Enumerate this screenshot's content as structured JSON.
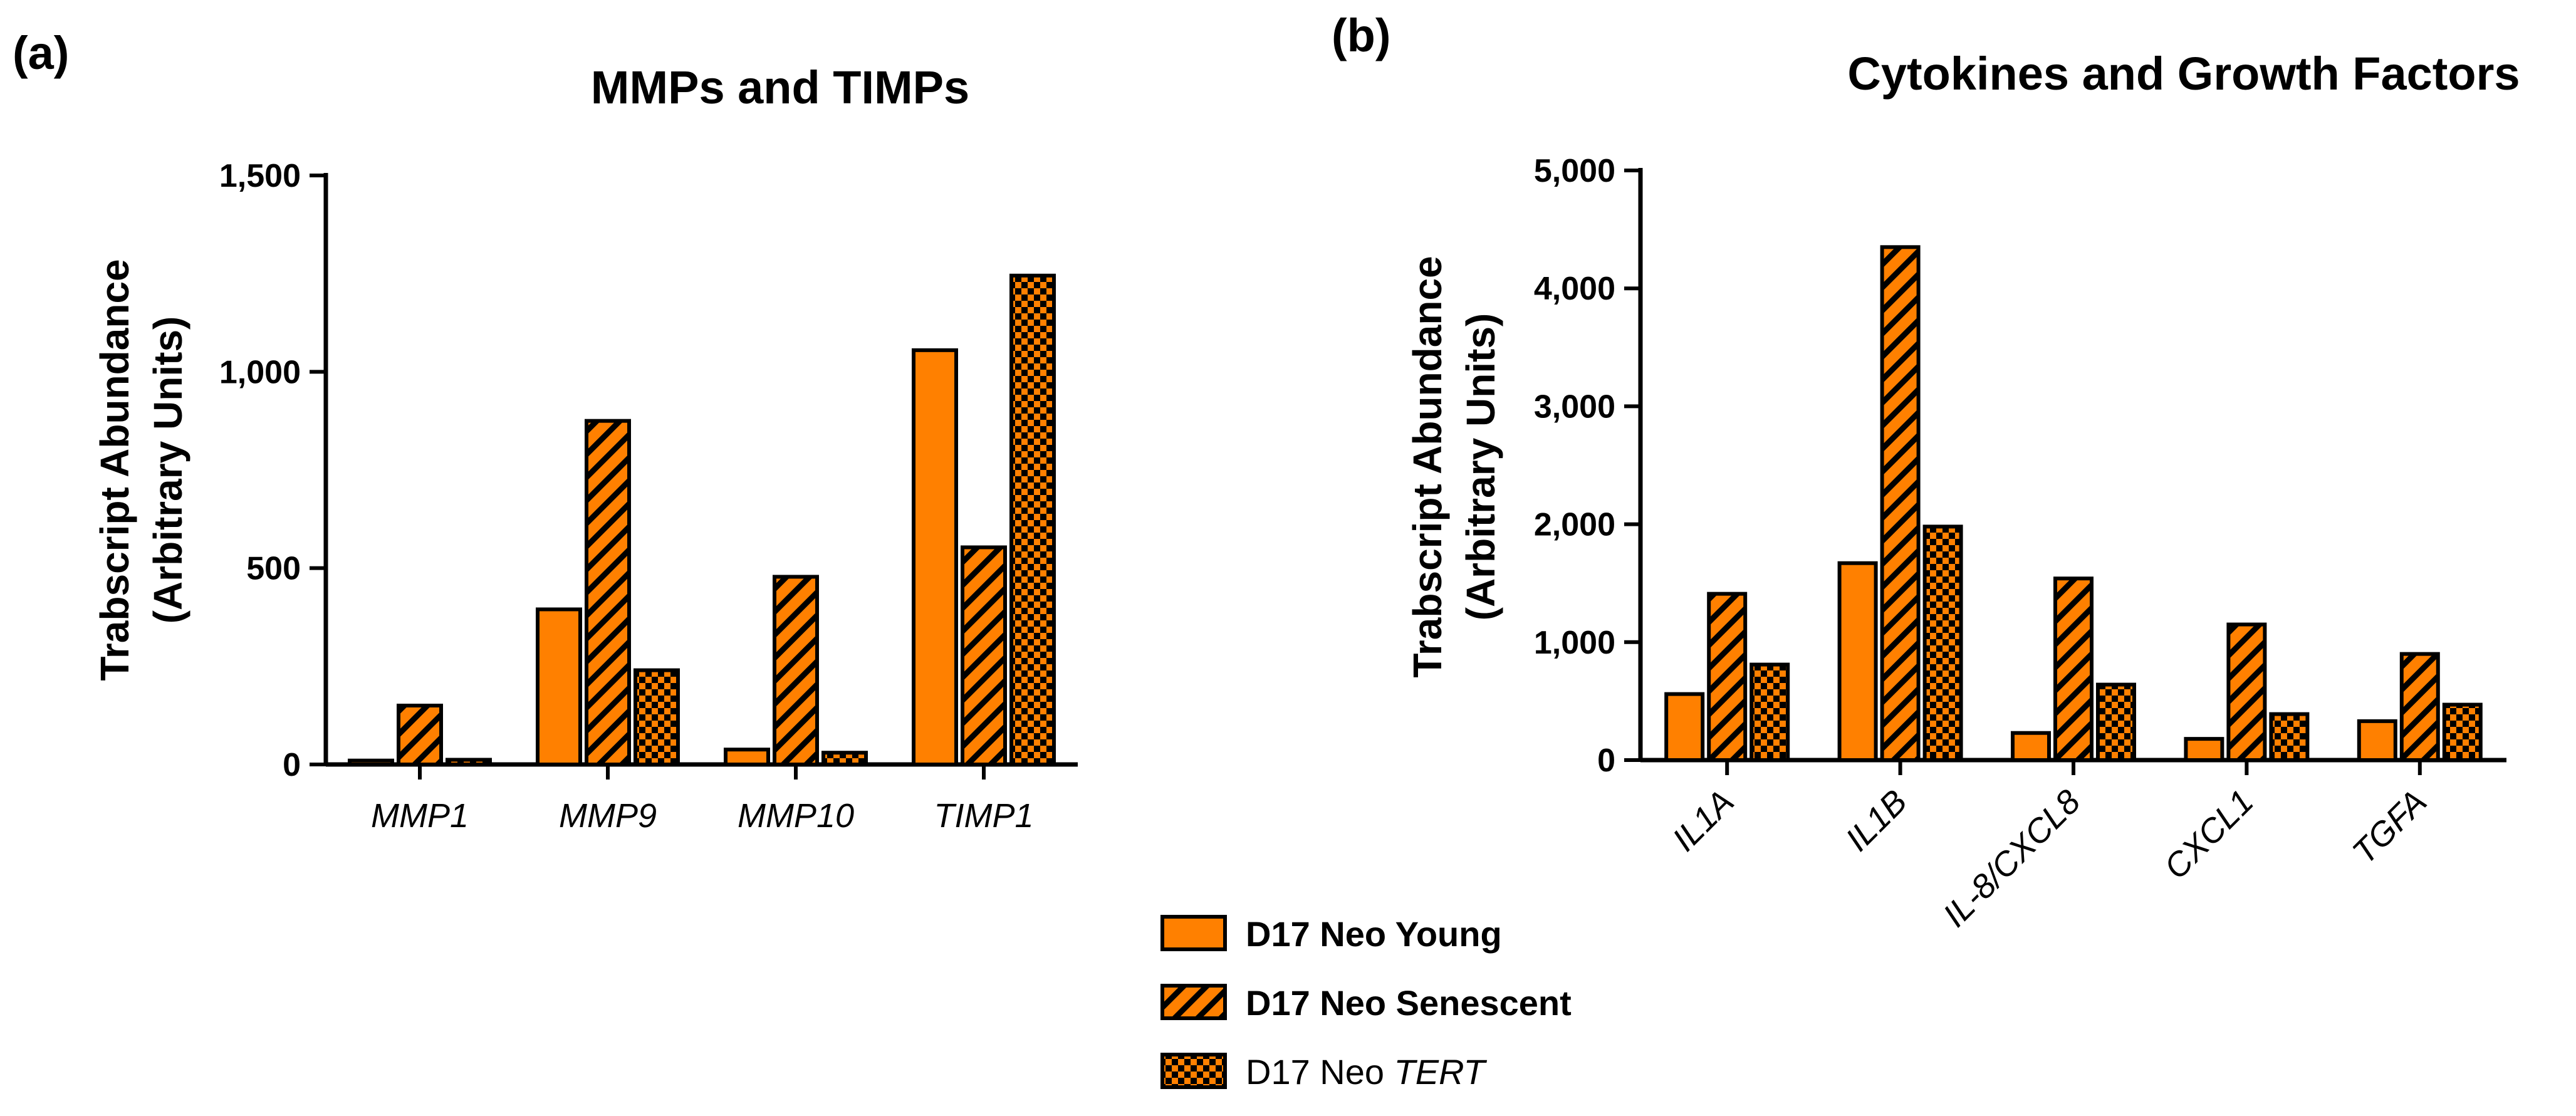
{
  "colors": {
    "bar_fill": "#FF8000",
    "stroke": "#000000",
    "background": "#FFFFFF"
  },
  "legend": {
    "entries": [
      {
        "pre": "D17 Neo Young",
        "italic": "",
        "bold": true,
        "pattern": "solid"
      },
      {
        "pre": "D17 Neo Senescent",
        "italic": "",
        "bold": true,
        "pattern": "hatch"
      },
      {
        "pre": "D17 Neo ",
        "italic": "TERT",
        "bold": false,
        "pattern": "checker"
      }
    ]
  },
  "chart_data": [
    {
      "panel": "(a)",
      "type": "bar",
      "title": "MMPs and TIMPs",
      "ylabel_lines": [
        "Trabscript Abundance",
        "(Arbitrary Units)"
      ],
      "xlabel": "",
      "ylim": [
        0,
        1500
      ],
      "yticks": [
        0,
        500,
        1000,
        1500
      ],
      "ytick_labels": [
        "0",
        "500",
        "1,000",
        "1,500"
      ],
      "categories": [
        "MMP1",
        "MMP9",
        "MMP10",
        "TIMP1"
      ],
      "series": [
        {
          "name": "D17 Neo Young",
          "pattern": "solid",
          "values": [
            10,
            395,
            38,
            1055
          ]
        },
        {
          "name": "D17 Neo Senescent",
          "pattern": "hatch",
          "values": [
            150,
            875,
            478,
            553
          ]
        },
        {
          "name": "D17 Neo TERT",
          "pattern": "checker",
          "values": [
            12,
            240,
            30,
            1245
          ]
        }
      ]
    },
    {
      "panel": "(b)",
      "type": "bar",
      "title": "Cytokines and Growth Factors",
      "ylabel_lines": [
        "Trabscript Abundance",
        "(Arbitrary Units)"
      ],
      "xlabel": "",
      "ylim": [
        0,
        5000
      ],
      "yticks": [
        0,
        1000,
        2000,
        3000,
        4000,
        5000
      ],
      "ytick_labels": [
        "0",
        "1,000",
        "2,000",
        "3,000",
        "4,000",
        "5,000"
      ],
      "categories": [
        "IL1A",
        "IL1B",
        "IL-8/CXCL8",
        "CXCL1",
        "TGFA"
      ],
      "series": [
        {
          "name": "D17 Neo Young",
          "pattern": "solid",
          "values": [
            560,
            1670,
            230,
            180,
            330
          ]
        },
        {
          "name": "D17 Neo Senescent",
          "pattern": "hatch",
          "values": [
            1410,
            4350,
            1540,
            1150,
            900
          ]
        },
        {
          "name": "D17 Neo TERT",
          "pattern": "checker",
          "values": [
            810,
            1980,
            640,
            390,
            470
          ]
        }
      ]
    }
  ]
}
